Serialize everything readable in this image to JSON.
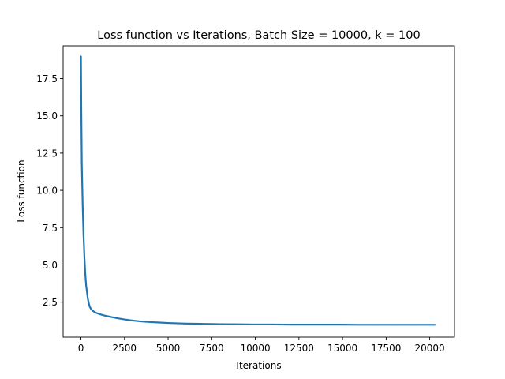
{
  "chart_data": {
    "type": "line",
    "title": "Loss function vs Iterations, Batch Size = 10000, k = 100",
    "xlabel": "Iterations",
    "ylabel": "Loss function",
    "xlim": [
      -1020,
      21420
    ],
    "ylim": [
      0.15,
      19.7
    ],
    "xticks": [
      0,
      2500,
      5000,
      7500,
      10000,
      12500,
      15000,
      17500,
      20000
    ],
    "xtick_labels": [
      "0",
      "2500",
      "5000",
      "7500",
      "10000",
      "12500",
      "15000",
      "17500",
      "20000"
    ],
    "yticks": [
      2.5,
      5.0,
      7.5,
      10.0,
      12.5,
      15.0,
      17.5
    ],
    "ytick_labels": [
      "2.5",
      "5.0",
      "7.5",
      "10.0",
      "12.5",
      "15.0",
      "17.5"
    ],
    "grid": false,
    "legend": "none",
    "color": "#1f77b4",
    "series": [
      {
        "x": [
          0,
          20,
          50,
          100,
          150,
          200,
          250,
          300,
          400,
          500,
          600,
          700,
          800,
          1000,
          1250,
          1500,
          2000,
          2500,
          3000,
          3500,
          4000,
          4500,
          5000,
          5500,
          6000,
          6500,
          7000,
          7500,
          8000,
          9000,
          10000,
          11000,
          12000,
          13000,
          14000,
          15000,
          16000,
          17000,
          18000,
          19000,
          20000,
          20300
        ],
        "y": [
          19.0,
          15.5,
          11.8,
          9.0,
          7.0,
          5.5,
          4.4,
          3.6,
          2.7,
          2.2,
          2.0,
          1.9,
          1.82,
          1.72,
          1.63,
          1.56,
          1.44,
          1.34,
          1.26,
          1.2,
          1.16,
          1.13,
          1.1,
          1.08,
          1.06,
          1.05,
          1.04,
          1.03,
          1.02,
          1.01,
          1.0,
          1.0,
          0.99,
          0.99,
          0.99,
          0.99,
          0.98,
          0.98,
          0.98,
          0.98,
          0.98,
          0.98
        ]
      }
    ]
  }
}
